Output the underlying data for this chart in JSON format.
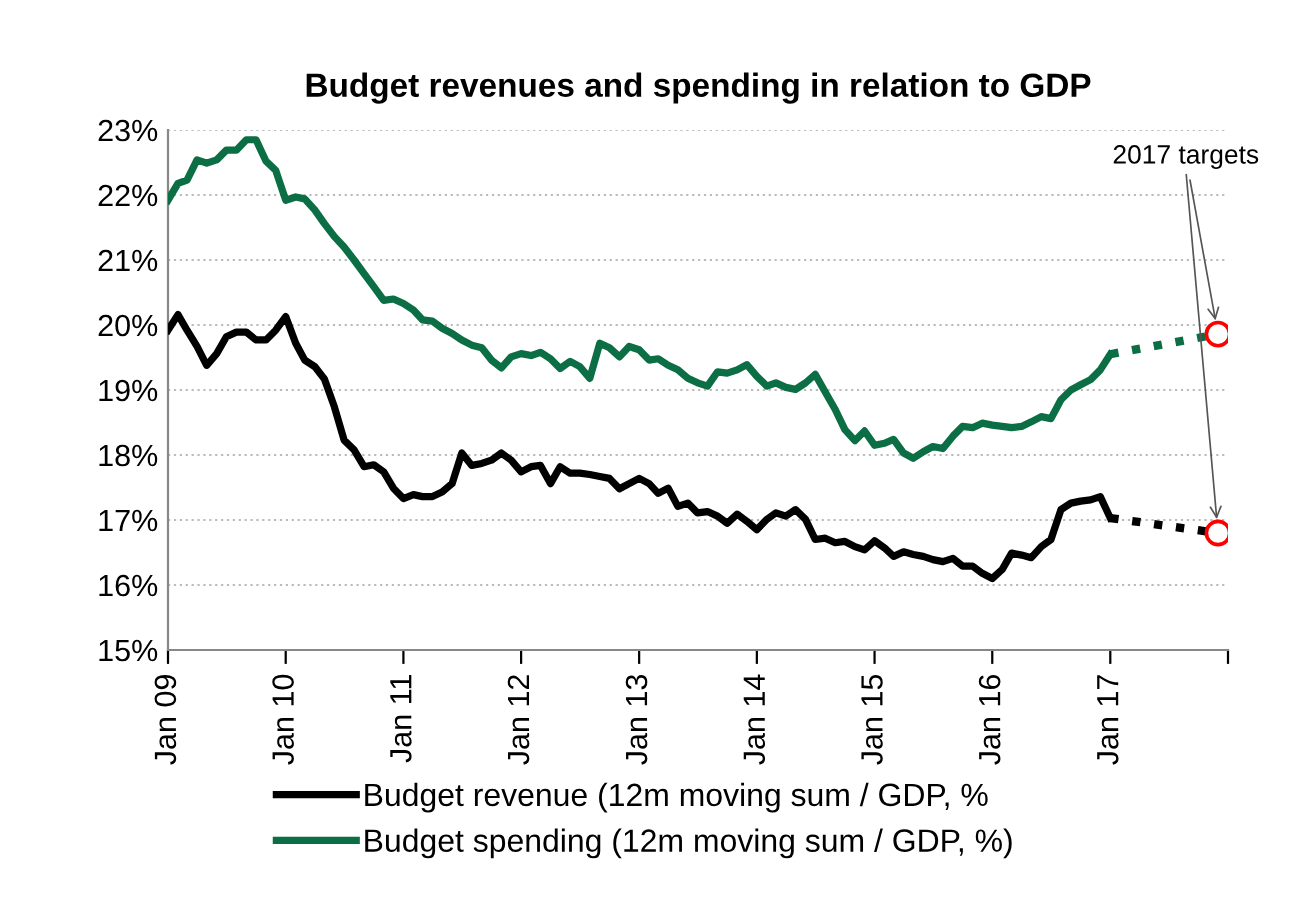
{
  "chart_data": {
    "type": "line",
    "title": "Budget revenues and spending in relation to GDP",
    "x": [
      "2009-01",
      "2009-02",
      "2009-03",
      "2009-04",
      "2009-05",
      "2009-06",
      "2009-07",
      "2009-08",
      "2009-09",
      "2009-10",
      "2009-11",
      "2009-12",
      "2010-01",
      "2010-02",
      "2010-03",
      "2010-04",
      "2010-05",
      "2010-06",
      "2010-07",
      "2010-08",
      "2010-09",
      "2010-10",
      "2010-11",
      "2010-12",
      "2011-01",
      "2011-02",
      "2011-03",
      "2011-04",
      "2011-05",
      "2011-06",
      "2011-07",
      "2011-08",
      "2011-09",
      "2011-10",
      "2011-11",
      "2011-12",
      "2012-01",
      "2012-02",
      "2012-03",
      "2012-04",
      "2012-05",
      "2012-06",
      "2012-07",
      "2012-08",
      "2012-09",
      "2012-10",
      "2012-11",
      "2012-12",
      "2013-01",
      "2013-02",
      "2013-03",
      "2013-04",
      "2013-05",
      "2013-06",
      "2013-07",
      "2013-08",
      "2013-09",
      "2013-10",
      "2013-11",
      "2013-12",
      "2014-01",
      "2014-02",
      "2014-03",
      "2014-04",
      "2014-05",
      "2014-06",
      "2014-07",
      "2014-08",
      "2014-09",
      "2014-10",
      "2014-11",
      "2014-12",
      "2015-01",
      "2015-02",
      "2015-03",
      "2015-04",
      "2015-05",
      "2015-06",
      "2015-07",
      "2015-08",
      "2015-09",
      "2015-10",
      "2015-11",
      "2015-12",
      "2016-01",
      "2016-02",
      "2016-03",
      "2016-04",
      "2016-05",
      "2016-06",
      "2016-07",
      "2016-08",
      "2016-09",
      "2016-10",
      "2016-11",
      "2016-12",
      "2017-01"
    ],
    "series": [
      {
        "name": "Budget revenue (12m moving sum / GDP, %",
        "color": "#000000",
        "values": [
          19.92,
          20.16,
          19.92,
          19.67,
          19.38,
          19.56,
          19.82,
          19.89,
          19.89,
          19.77,
          19.77,
          19.92,
          20.13,
          19.72,
          19.46,
          19.36,
          19.17,
          18.74,
          18.23,
          18.08,
          17.82,
          17.85,
          17.74,
          17.49,
          17.33,
          17.39,
          17.36,
          17.36,
          17.43,
          17.56,
          18.03,
          17.84,
          17.87,
          17.92,
          18.03,
          17.92,
          17.74,
          17.82,
          17.84,
          17.56,
          17.82,
          17.72,
          17.72,
          17.7,
          17.67,
          17.64,
          17.48,
          17.56,
          17.64,
          17.56,
          17.41,
          17.49,
          17.21,
          17.26,
          17.11,
          17.13,
          17.06,
          16.95,
          17.09,
          16.98,
          16.85,
          17.01,
          17.11,
          17.06,
          17.16,
          17.01,
          16.7,
          16.72,
          16.65,
          16.67,
          16.59,
          16.54,
          16.68,
          16.57,
          16.44,
          16.51,
          16.47,
          16.44,
          16.39,
          16.36,
          16.41,
          16.29,
          16.29,
          16.18,
          16.1,
          16.24,
          16.49,
          16.46,
          16.42,
          16.59,
          16.7,
          17.16,
          17.26,
          17.29,
          17.31,
          17.36,
          17.03
        ]
      },
      {
        "name": "Budget spending (12m moving sum / GDP, %)",
        "color": "#0b6e45",
        "values": [
          21.92,
          22.18,
          22.23,
          22.54,
          22.49,
          22.54,
          22.69,
          22.69,
          22.85,
          22.85,
          22.52,
          22.38,
          21.92,
          21.97,
          21.94,
          21.77,
          21.56,
          21.36,
          21.2,
          21.0,
          20.79,
          20.59,
          20.38,
          20.4,
          20.33,
          20.23,
          20.08,
          20.06,
          19.95,
          19.87,
          19.77,
          19.69,
          19.65,
          19.46,
          19.34,
          19.51,
          19.56,
          19.53,
          19.58,
          19.48,
          19.33,
          19.44,
          19.36,
          19.18,
          19.72,
          19.65,
          19.51,
          19.67,
          19.62,
          19.46,
          19.48,
          19.38,
          19.31,
          19.18,
          19.11,
          19.06,
          19.28,
          19.26,
          19.31,
          19.39,
          19.21,
          19.06,
          19.11,
          19.04,
          19.01,
          19.11,
          19.24,
          18.97,
          18.7,
          18.39,
          18.22,
          18.37,
          18.15,
          18.18,
          18.24,
          18.03,
          17.95,
          18.05,
          18.13,
          18.1,
          18.29,
          18.44,
          18.42,
          18.49,
          18.46,
          18.44,
          18.42,
          18.44,
          18.51,
          18.59,
          18.56,
          18.85,
          19.0,
          19.08,
          19.16,
          19.31,
          19.55
        ]
      },
      {
        "type": "line",
        "line_style": "dotted",
        "color": "#000000",
        "x": [
          "2017-01",
          "2017-12"
        ],
        "values": [
          17.03,
          16.8
        ]
      },
      {
        "type": "line",
        "line_style": "dotted",
        "color": "#0b6e45",
        "x": [
          "2017-01",
          "2017-12"
        ],
        "values": [
          19.55,
          19.86
        ]
      },
      {
        "type": "scatter",
        "marker": "circle",
        "color": "#ff0000",
        "x": [
          "2017-12",
          "2017-12"
        ],
        "values": [
          16.8,
          19.86
        ]
      }
    ],
    "annotations": [
      {
        "text": "2017 targets",
        "x": "2017-12",
        "y": 19.86
      }
    ],
    "xlim": [
      "2009-01",
      "2018-01"
    ],
    "xticks": [
      {
        "value": "2009-01",
        "label": "Jan 09"
      },
      {
        "value": "2010-01",
        "label": "Jan 10"
      },
      {
        "value": "2011-01",
        "label": "Jan 11"
      },
      {
        "value": "2012-01",
        "label": "Jan 12"
      },
      {
        "value": "2013-01",
        "label": "Jan 13"
      },
      {
        "value": "2014-01",
        "label": "Jan 14"
      },
      {
        "value": "2015-01",
        "label": "Jan 15"
      },
      {
        "value": "2016-01",
        "label": "Jan 16"
      },
      {
        "value": "2017-01",
        "label": "Jan 17"
      },
      {
        "value": "2018-01",
        "label": null
      }
    ],
    "ylim": [
      15,
      23
    ],
    "yticks": [
      {
        "value": 15,
        "label": "15%"
      },
      {
        "value": 16,
        "label": "16%"
      },
      {
        "value": 17,
        "label": "17%"
      },
      {
        "value": 18,
        "label": "18%"
      },
      {
        "value": 19,
        "label": "19%"
      },
      {
        "value": 20,
        "label": "20%"
      },
      {
        "value": 21,
        "label": "21%"
      },
      {
        "value": 22,
        "label": "22%"
      },
      {
        "value": 23,
        "label": "23%"
      }
    ],
    "grid": "y",
    "legend": "bottom",
    "line_style": "solid",
    "marker": "none"
  }
}
